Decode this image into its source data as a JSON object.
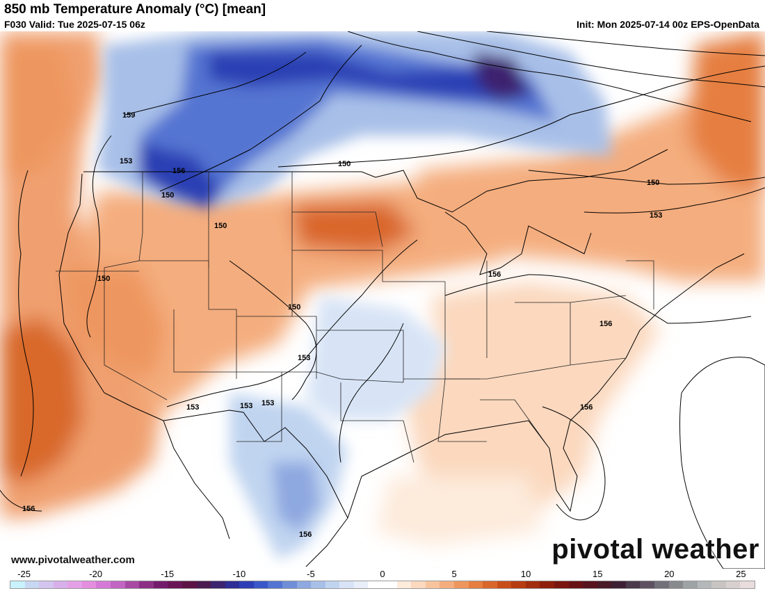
{
  "header": {
    "title": "850 mb Temperature Anomaly (°C) [mean]",
    "valid": "F030 Valid: Tue 2025-07-15 06z",
    "init": "Init: Mon 2025-07-14 00z EPS-OpenData"
  },
  "footer": {
    "website": "www.pivotalweather.com",
    "brand": "pivotal weather"
  },
  "contour_labels": [
    "159",
    "153",
    "156",
    "150",
    "150",
    "150",
    "150",
    "150",
    "150",
    "153",
    "156",
    "156",
    "153",
    "153",
    "153",
    "153",
    "156",
    "156",
    "156"
  ],
  "colorbar": {
    "ticks": [
      "-25",
      "-20",
      "-15",
      "-10",
      "-5",
      "0",
      "5",
      "10",
      "15",
      "20",
      "25"
    ],
    "tick_values": [
      -25,
      -20,
      -15,
      -10,
      -5,
      0,
      5,
      10,
      15,
      20,
      25
    ],
    "range": [
      -26,
      26
    ],
    "colors": [
      "#c9f2fb",
      "#c8d8f2",
      "#d4c4f0",
      "#d8b0ea",
      "#e4a0e6",
      "#e48ee0",
      "#d47ad6",
      "#c266c4",
      "#a84aa4",
      "#8c3086",
      "#741c6c",
      "#6a1458",
      "#5c1446",
      "#4b1a50",
      "#3c2470",
      "#2e2e96",
      "#2c3fb4",
      "#3a58c8",
      "#5474d2",
      "#708ed8",
      "#8ea8e0",
      "#a8c0e8",
      "#c0d4f0",
      "#d8e4f6",
      "#e8eff9",
      "#ffffff",
      "#ffffff",
      "#fdebdc",
      "#fbd8be",
      "#f8c49e",
      "#f4ad7e",
      "#ee965e",
      "#e57e40",
      "#d9662a",
      "#c94f1a",
      "#b63c12",
      "#a22c0e",
      "#8e1e0c",
      "#7a1610",
      "#681216",
      "#58141e",
      "#4a1a28",
      "#3e2034",
      "#4a3a4a",
      "#5e5262",
      "#727078",
      "#888a8e",
      "#9ea4a4",
      "#b4b8b8",
      "#c8c4c4",
      "#d8d0d0",
      "#e8dcdc"
    ]
  }
}
